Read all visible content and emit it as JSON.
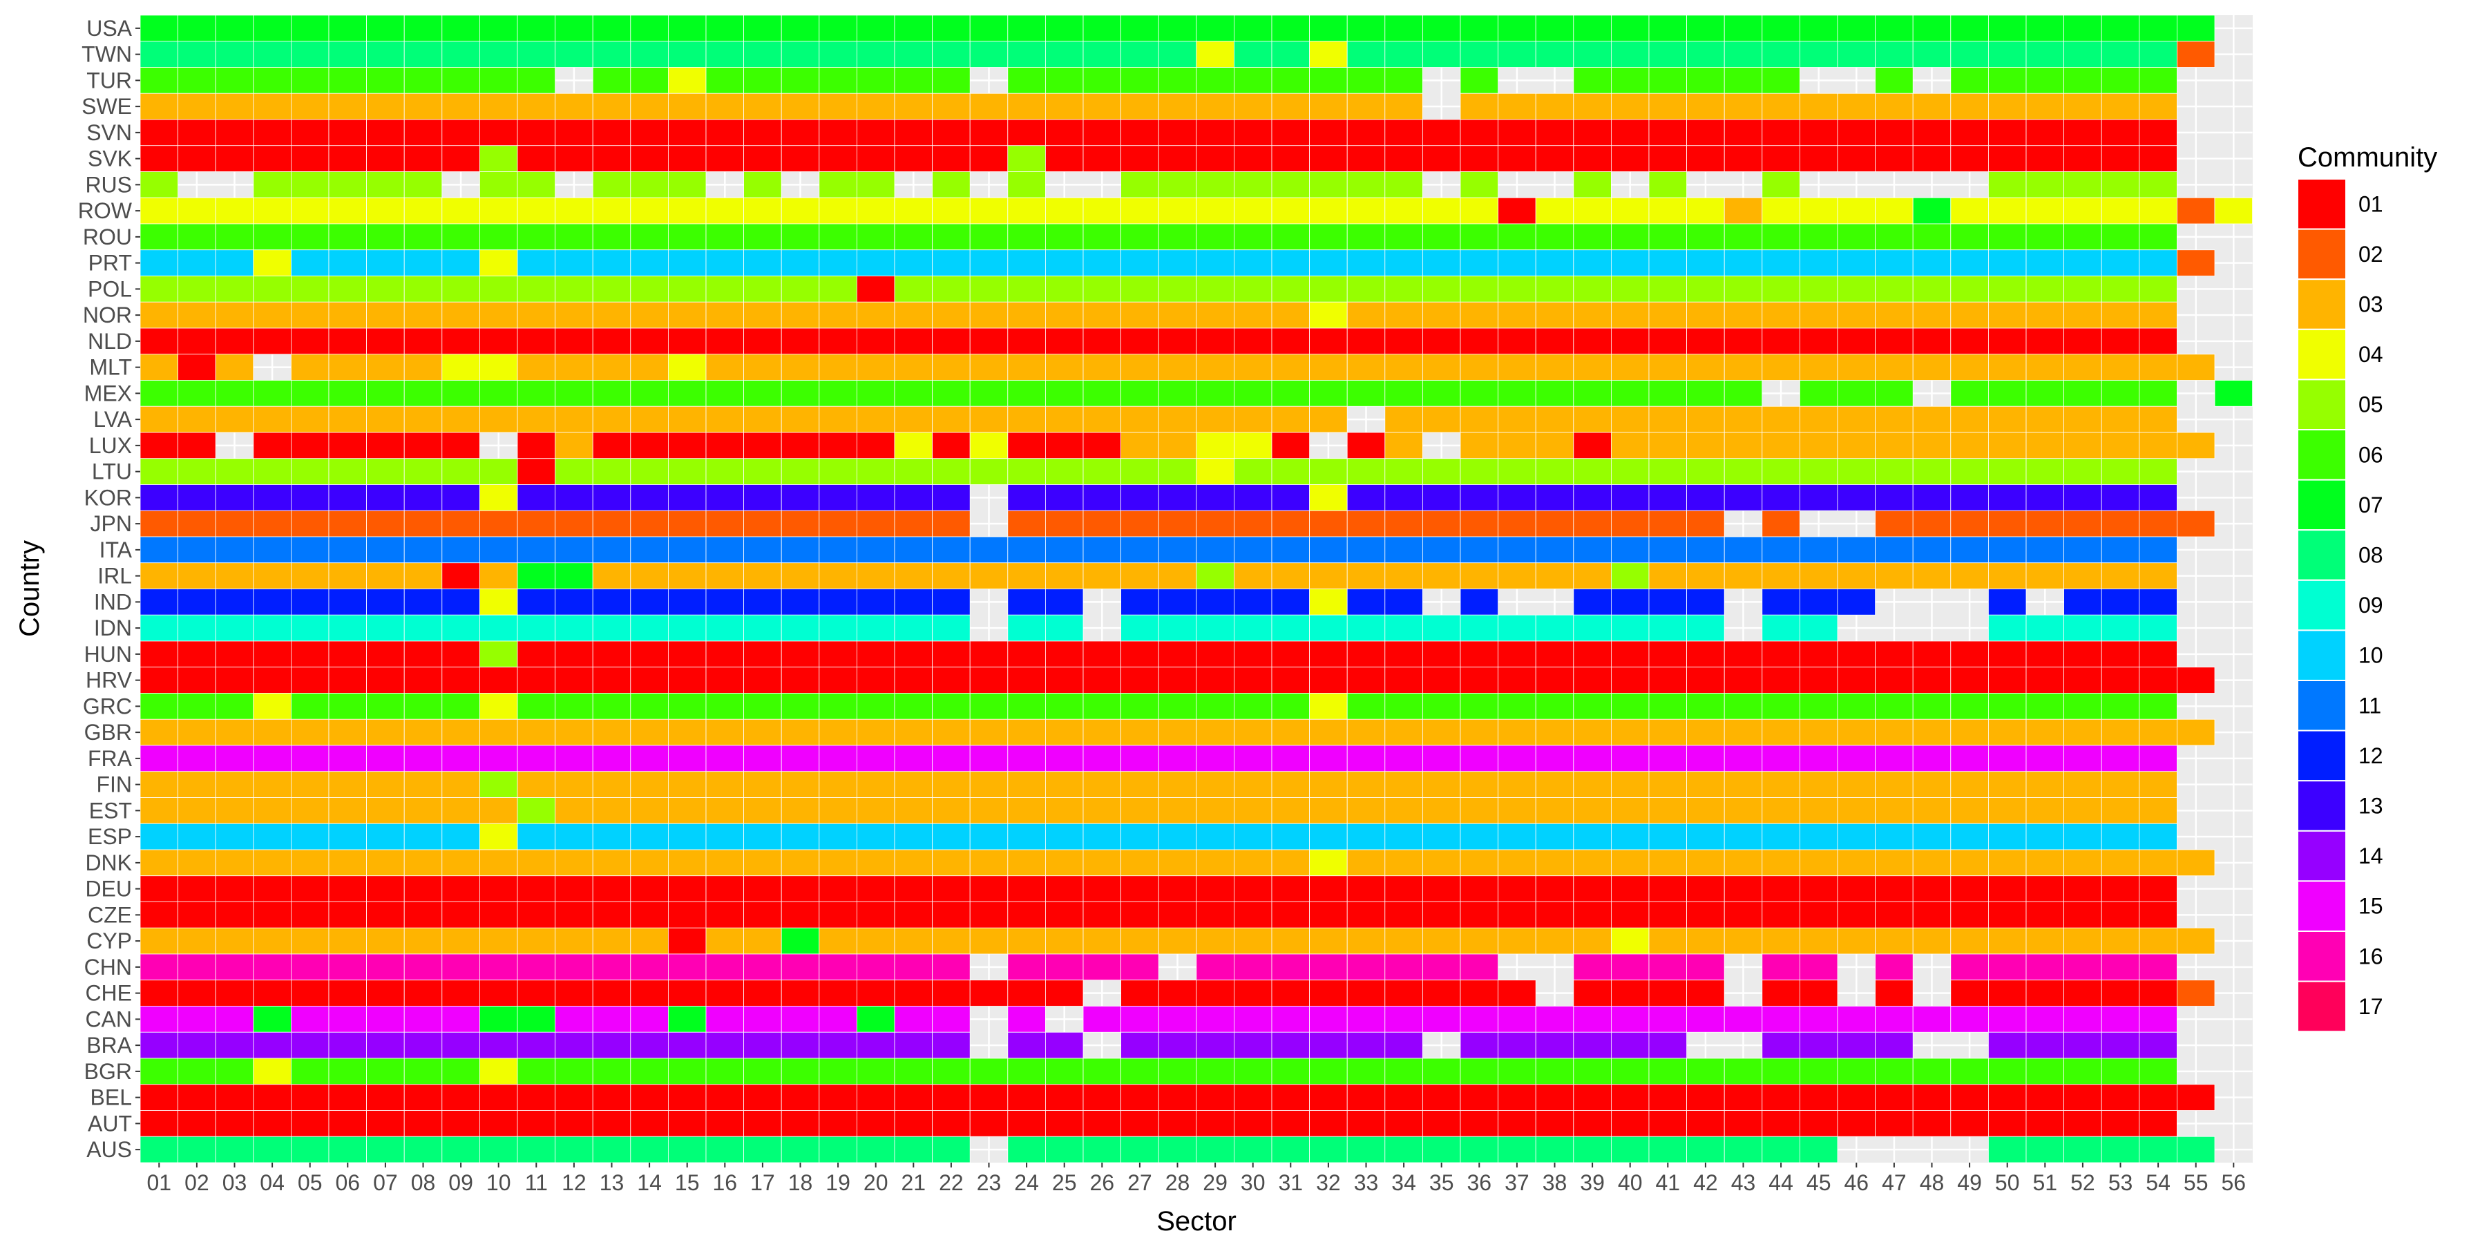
{
  "chart_data": {
    "type": "heatmap",
    "title": "",
    "xlabel": "Sector",
    "ylabel": "Country",
    "legend_title": "Community",
    "legend_position": "right",
    "grid": true,
    "x": [
      "01",
      "02",
      "03",
      "04",
      "05",
      "06",
      "07",
      "08",
      "09",
      "10",
      "11",
      "12",
      "13",
      "14",
      "15",
      "16",
      "17",
      "18",
      "19",
      "20",
      "21",
      "22",
      "23",
      "24",
      "25",
      "26",
      "27",
      "28",
      "29",
      "30",
      "31",
      "32",
      "33",
      "34",
      "35",
      "36",
      "37",
      "38",
      "39",
      "40",
      "41",
      "42",
      "43",
      "44",
      "45",
      "46",
      "47",
      "48",
      "49",
      "50",
      "51",
      "52",
      "53",
      "54",
      "55",
      "56"
    ],
    "y": [
      "USA",
      "TWN",
      "TUR",
      "SWE",
      "SVN",
      "SVK",
      "RUS",
      "ROW",
      "ROU",
      "PRT",
      "POL",
      "NOR",
      "NLD",
      "MLT",
      "MEX",
      "LVA",
      "LUX",
      "LTU",
      "KOR",
      "JPN",
      "ITA",
      "IRL",
      "IND",
      "IDN",
      "HUN",
      "HRV",
      "GRC",
      "GBR",
      "FRA",
      "FIN",
      "EST",
      "ESP",
      "DNK",
      "DEU",
      "CZE",
      "CYP",
      "CHN",
      "CHE",
      "CAN",
      "BRA",
      "BGR",
      "BEL",
      "AUT",
      "AUS"
    ],
    "communities": [
      {
        "label": "01",
        "color": "#FF0000"
      },
      {
        "label": "02",
        "color": "#FF5A00"
      },
      {
        "label": "03",
        "color": "#FFB400"
      },
      {
        "label": "04",
        "color": "#F0FF00"
      },
      {
        "label": "05",
        "color": "#96FF00"
      },
      {
        "label": "06",
        "color": "#3CFF00"
      },
      {
        "label": "07",
        "color": "#00FF1E"
      },
      {
        "label": "08",
        "color": "#00FF78"
      },
      {
        "label": "09",
        "color": "#00FFD2"
      },
      {
        "label": "10",
        "color": "#00D2FF"
      },
      {
        "label": "11",
        "color": "#0078FF"
      },
      {
        "label": "12",
        "color": "#001EFF"
      },
      {
        "label": "13",
        "color": "#3C00FF"
      },
      {
        "label": "14",
        "color": "#9600FF"
      },
      {
        "label": "15",
        "color": "#F000FF"
      },
      {
        "label": "16",
        "color": "#FF00B4"
      },
      {
        "label": "17",
        "color": "#FF005A"
      }
    ],
    "rows": {
      "USA": {
        "base": "07",
        "last": 55,
        "overrides": {}
      },
      "TWN": {
        "base": "08",
        "last": 54,
        "overrides": {
          "29": "04",
          "32": "04",
          "55": "02"
        }
      },
      "TUR": {
        "base": "06",
        "last": 54,
        "overrides": {
          "12": null,
          "15": "04",
          "23": null,
          "35": null,
          "37": null,
          "38": null,
          "45": null,
          "46": null,
          "48": null
        }
      },
      "SWE": {
        "base": "03",
        "last": 54,
        "overrides": {
          "35": null
        }
      },
      "SVN": {
        "base": "01",
        "last": 54,
        "overrides": {}
      },
      "SVK": {
        "base": "01",
        "last": 54,
        "overrides": {
          "10": "05",
          "24": "05"
        }
      },
      "RUS": {
        "base": "05",
        "last": 54,
        "overrides": {
          "02": null,
          "03": null,
          "09": null,
          "12": null,
          "16": null,
          "18": null,
          "21": null,
          "23": null,
          "25": null,
          "26": null,
          "35": null,
          "37": null,
          "38": null,
          "40": null,
          "42": null,
          "43": null,
          "45": null,
          "46": null,
          "47": null,
          "48": null,
          "49": null
        }
      },
      "ROW": {
        "base": "04",
        "last": 56,
        "overrides": {
          "37": "01",
          "43": "03",
          "48": "07",
          "55": "02"
        }
      },
      "ROU": {
        "base": "06",
        "last": 54,
        "overrides": {}
      },
      "PRT": {
        "base": "10",
        "last": 55,
        "overrides": {
          "04": "04",
          "10": "04",
          "55": "02"
        }
      },
      "POL": {
        "base": "05",
        "last": 54,
        "overrides": {
          "20": "01"
        }
      },
      "NOR": {
        "base": "03",
        "last": 54,
        "overrides": {
          "32": "04"
        }
      },
      "NLD": {
        "base": "01",
        "last": 54,
        "overrides": {}
      },
      "MLT": {
        "base": "03",
        "last": 55,
        "overrides": {
          "02": "01",
          "04": null,
          "09": "04",
          "10": "04",
          "15": "04"
        }
      },
      "MEX": {
        "base": "06",
        "last": 54,
        "overrides": {
          "44": null,
          "48": null,
          "56": "07"
        }
      },
      "LVA": {
        "base": "03",
        "last": 54,
        "overrides": {
          "33": null
        }
      },
      "LUX": {
        "base": "01",
        "last": 55,
        "overrides": {
          "03": null,
          "10": null,
          "12": "03",
          "21": "04",
          "23": "04",
          "27": "03",
          "28": "03",
          "29": "04",
          "30": "04",
          "32": null,
          "34": "03",
          "35": null,
          "36": "03",
          "37": "03",
          "38": "03",
          "40": "03",
          "41": "03",
          "42": "03",
          "43": "03",
          "44": "03",
          "45": "03",
          "46": "03",
          "47": "03",
          "48": "03",
          "49": "03",
          "50": "03",
          "51": "03",
          "52": "03",
          "53": "03",
          "54": "03",
          "55": "03"
        }
      },
      "LTU": {
        "base": "05",
        "last": 54,
        "overrides": {
          "11": "01",
          "29": "04"
        }
      },
      "KOR": {
        "base": "13",
        "last": 54,
        "overrides": {
          "10": "04",
          "23": null,
          "32": "04"
        }
      },
      "JPN": {
        "base": "02",
        "last": 55,
        "overrides": {
          "23": null,
          "43": null,
          "45": null,
          "46": null
        }
      },
      "ITA": {
        "base": "11",
        "last": 54,
        "overrides": {}
      },
      "IRL": {
        "base": "03",
        "last": 54,
        "overrides": {
          "09": "01",
          "11": "07",
          "12": "07",
          "29": "05",
          "40": "05"
        }
      },
      "IND": {
        "base": "12",
        "last": 54,
        "overrides": {
          "10": "04",
          "23": null,
          "24": "12",
          "26": null,
          "32": "04",
          "35": null,
          "37": null,
          "38": null,
          "43": null,
          "47": null,
          "48": null,
          "49": null,
          "51": null
        }
      },
      "IDN": {
        "base": "09",
        "last": 54,
        "overrides": {
          "23": null,
          "26": null,
          "43": null,
          "46": null,
          "47": null,
          "48": null,
          "49": null
        }
      },
      "HUN": {
        "base": "01",
        "last": 54,
        "overrides": {
          "10": "05"
        }
      },
      "HRV": {
        "base": "01",
        "last": 55,
        "overrides": {}
      },
      "GRC": {
        "base": "06",
        "last": 54,
        "overrides": {
          "04": "04",
          "10": "04",
          "32": "04"
        }
      },
      "GBR": {
        "base": "03",
        "last": 55,
        "overrides": {}
      },
      "FRA": {
        "base": "15",
        "last": 54,
        "overrides": {}
      },
      "FIN": {
        "base": "03",
        "last": 54,
        "overrides": {
          "10": "05"
        }
      },
      "EST": {
        "base": "03",
        "last": 54,
        "overrides": {
          "11": "05"
        }
      },
      "ESP": {
        "base": "10",
        "last": 54,
        "overrides": {
          "10": "04"
        }
      },
      "DNK": {
        "base": "03",
        "last": 55,
        "overrides": {
          "32": "04"
        }
      },
      "DEU": {
        "base": "01",
        "last": 54,
        "overrides": {}
      },
      "CZE": {
        "base": "01",
        "last": 54,
        "overrides": {}
      },
      "CYP": {
        "base": "03",
        "last": 55,
        "overrides": {
          "15": "01",
          "18": "07",
          "40": "04"
        }
      },
      "CHN": {
        "base": "16",
        "last": 54,
        "overrides": {
          "23": null,
          "28": null,
          "37": null,
          "38": null,
          "43": null,
          "46": null,
          "48": null
        }
      },
      "CHE": {
        "base": "01",
        "last": 55,
        "overrides": {
          "26": null,
          "38": null,
          "43": null,
          "46": null,
          "48": null,
          "55": "02"
        }
      },
      "CAN": {
        "base": "15",
        "last": 54,
        "overrides": {
          "04": "07",
          "10": "07",
          "11": "07",
          "15": "07",
          "20": "07",
          "23": null,
          "25": null
        }
      },
      "BRA": {
        "base": "14",
        "last": 54,
        "overrides": {
          "23": null,
          "26": null,
          "35": null,
          "42": null,
          "43": null,
          "48": null,
          "49": null
        }
      },
      "BGR": {
        "base": "06",
        "last": 54,
        "overrides": {
          "04": "04",
          "10": "04"
        }
      },
      "BEL": {
        "base": "01",
        "last": 55,
        "overrides": {}
      },
      "AUT": {
        "base": "01",
        "last": 54,
        "overrides": {}
      },
      "AUS": {
        "base": "08",
        "last": 55,
        "overrides": {
          "23": null,
          "46": null,
          "47": null,
          "48": null,
          "49": null
        }
      }
    }
  }
}
